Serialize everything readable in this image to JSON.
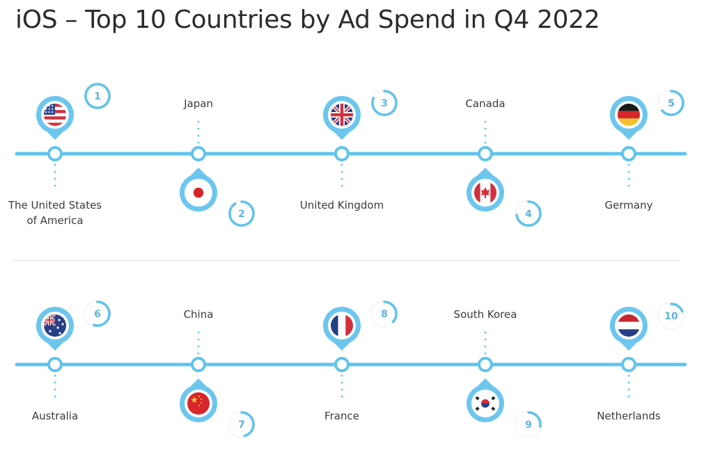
{
  "title": "iOS – Top 10 Countries by Ad Spend in Q4 2022",
  "colors": {
    "accent": "#5fc4ec",
    "accent_light": "#9ed9f2",
    "pin": "#6cc6ee",
    "text": "#3a3a3a",
    "rank_text": "#5fb3d9"
  },
  "rows": [
    {
      "countries": [
        {
          "rank": "1",
          "name_lines": [
            "The United States",
            "of America"
          ],
          "flag": "flag-usa-icon"
        },
        {
          "rank": "2",
          "name_lines": [
            "Japan"
          ],
          "flag": "flag-japan-icon"
        },
        {
          "rank": "3",
          "name_lines": [
            "United Kingdom"
          ],
          "flag": "flag-uk-icon"
        },
        {
          "rank": "4",
          "name_lines": [
            "Canada"
          ],
          "flag": "flag-canada-icon"
        },
        {
          "rank": "5",
          "name_lines": [
            "Germany"
          ],
          "flag": "flag-germany-icon"
        }
      ]
    },
    {
      "countries": [
        {
          "rank": "6",
          "name_lines": [
            "Australia"
          ],
          "flag": "flag-australia-icon"
        },
        {
          "rank": "7",
          "name_lines": [
            "China"
          ],
          "flag": "flag-china-icon"
        },
        {
          "rank": "8",
          "name_lines": [
            "France"
          ],
          "flag": "flag-france-icon"
        },
        {
          "rank": "9",
          "name_lines": [
            "South Korea"
          ],
          "flag": "flag-south-korea-icon"
        },
        {
          "rank": "10",
          "name_lines": [
            "Netherlands"
          ],
          "flag": "flag-netherlands-icon"
        }
      ]
    }
  ]
}
